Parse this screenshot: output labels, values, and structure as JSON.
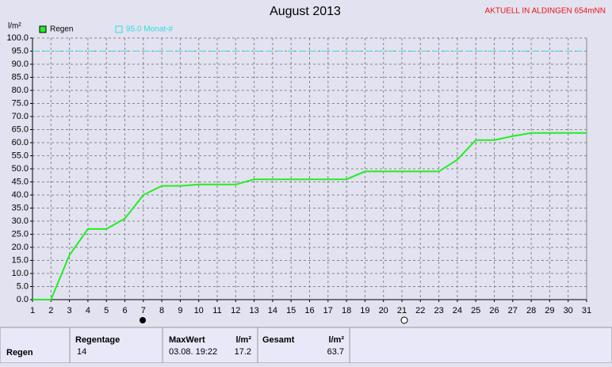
{
  "chart_data": {
    "type": "line",
    "title": "August 2013",
    "subtitle": "AKTUELL IN ALDINGEN 654mNN",
    "y_label": "l/m²",
    "x": [
      1,
      2,
      3,
      4,
      5,
      6,
      7,
      8,
      9,
      10,
      11,
      12,
      13,
      14,
      15,
      16,
      17,
      18,
      19,
      20,
      21,
      22,
      23,
      24,
      25,
      26,
      27,
      28,
      29,
      30,
      31
    ],
    "series": [
      {
        "name": "Regen",
        "color": "#22ee22",
        "values": [
          0,
          0,
          17,
          27,
          27,
          31,
          40,
          43.5,
          43.5,
          44,
          44,
          44,
          46,
          46,
          46,
          46,
          46,
          46,
          49,
          49,
          49,
          49,
          49,
          53.5,
          61,
          61,
          62.5,
          63.7,
          63.7,
          63.7,
          63.7
        ]
      }
    ],
    "reference": {
      "name": "95.0 Monat-#",
      "value": 95,
      "color": "#33dddd"
    },
    "xlim": [
      1,
      31
    ],
    "xticks": [
      1,
      2,
      3,
      4,
      5,
      6,
      7,
      8,
      9,
      10,
      11,
      12,
      13,
      14,
      15,
      16,
      17,
      18,
      19,
      20,
      21,
      22,
      23,
      24,
      25,
      26,
      27,
      28,
      29,
      30,
      31
    ],
    "ylim": [
      0,
      100
    ],
    "yticks": [
      {
        "value": 0,
        "label": "0.0"
      },
      {
        "value": 5,
        "label": "5.0"
      },
      {
        "value": 10,
        "label": "10.0"
      },
      {
        "value": 15,
        "label": "15.0"
      },
      {
        "value": 20,
        "label": "20.0"
      },
      {
        "value": 25,
        "label": "25.0"
      },
      {
        "value": 30,
        "label": "30.0"
      },
      {
        "value": 35,
        "label": "35.0"
      },
      {
        "value": 40,
        "label": "40.0"
      },
      {
        "value": 45,
        "label": "45.0"
      },
      {
        "value": 50,
        "label": "50.0"
      },
      {
        "value": 55,
        "label": "55.0"
      },
      {
        "value": 60,
        "label": "60.0"
      },
      {
        "value": 65,
        "label": "65.0"
      },
      {
        "value": 70,
        "label": "70.0"
      },
      {
        "value": 75,
        "label": "75.0"
      },
      {
        "value": 80,
        "label": "80.0"
      },
      {
        "value": 85,
        "label": "85.0"
      },
      {
        "value": 90,
        "label": "90.0"
      },
      {
        "value": 95,
        "label": "95.0"
      },
      {
        "value": 100,
        "label": "100.0"
      }
    ],
    "grid": true
  },
  "table": {
    "row_label": "Regen",
    "regentage": {
      "header": "Regentage",
      "value": "14"
    },
    "maxwert": {
      "header": "MaxWert",
      "unit": "l/m²",
      "time": "03.08. 19:22",
      "value": "17.2"
    },
    "gesamt": {
      "header": "Gesamt",
      "unit": "l/m²",
      "value": "63.7"
    }
  }
}
